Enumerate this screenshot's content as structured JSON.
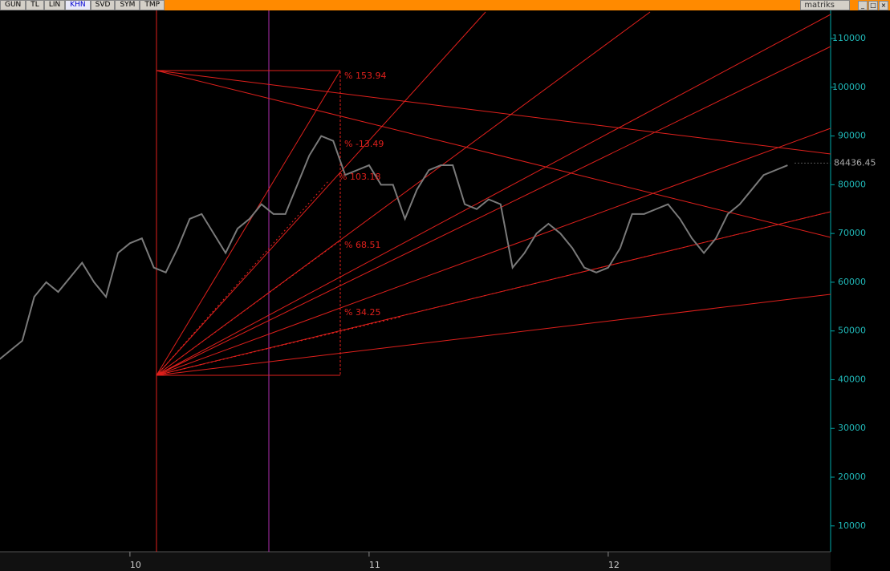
{
  "toolbar": {
    "buttons": [
      "GUN",
      "TL",
      "LIN",
      "KHN",
      "SVD",
      "SYM",
      "TMP"
    ],
    "active": 3,
    "brand": "matriks"
  },
  "chart_data": {
    "type": "line",
    "categories": [
      null,
      null,
      null,
      null,
      null,
      null,
      null,
      null,
      null,
      null,
      null,
      "10",
      null,
      null,
      null,
      null,
      null,
      null,
      null,
      null,
      null,
      null,
      null,
      null,
      null,
      null,
      null,
      null,
      null,
      null,
      null,
      "11",
      null,
      null,
      null,
      null,
      null,
      null,
      null,
      null,
      null,
      null,
      null,
      null,
      null,
      null,
      null,
      null,
      null,
      null,
      null,
      "12",
      null,
      null,
      null,
      null,
      null,
      null,
      null,
      null,
      null,
      null,
      null,
      null,
      null,
      null,
      null
    ],
    "series": [
      {
        "color": "#7a7a7a",
        "values": [
          44000,
          46000,
          48000,
          57000,
          60000,
          58000,
          61000,
          64000,
          60000,
          57000,
          66000,
          68000,
          69000,
          63000,
          62000,
          67000,
          73000,
          74000,
          70000,
          66000,
          71000,
          73000,
          76000,
          74000,
          74000,
          80000,
          86000,
          90000,
          89000,
          82000,
          83000,
          84000,
          80000,
          80000,
          73000,
          79000,
          83000,
          84000,
          84000,
          76000,
          75000,
          77000,
          76000,
          63000,
          66000,
          70000,
          72000,
          70000,
          67000,
          63000,
          62000,
          63000,
          67000,
          74000,
          74000,
          75000,
          76000,
          73000,
          69000,
          66000,
          69000,
          74000,
          76000,
          79000,
          82000,
          83000,
          84000
        ]
      }
    ],
    "ylim": [
      4700,
      115600
    ],
    "yticks": [
      10000,
      20000,
      30000,
      40000,
      50000,
      60000,
      70000,
      80000,
      90000,
      100000,
      110000
    ],
    "last_value": 84436.45,
    "annotations": [
      "% 153.94",
      "% -13.49",
      "% 103.18",
      "% 68.51",
      "% 34.25"
    ]
  }
}
